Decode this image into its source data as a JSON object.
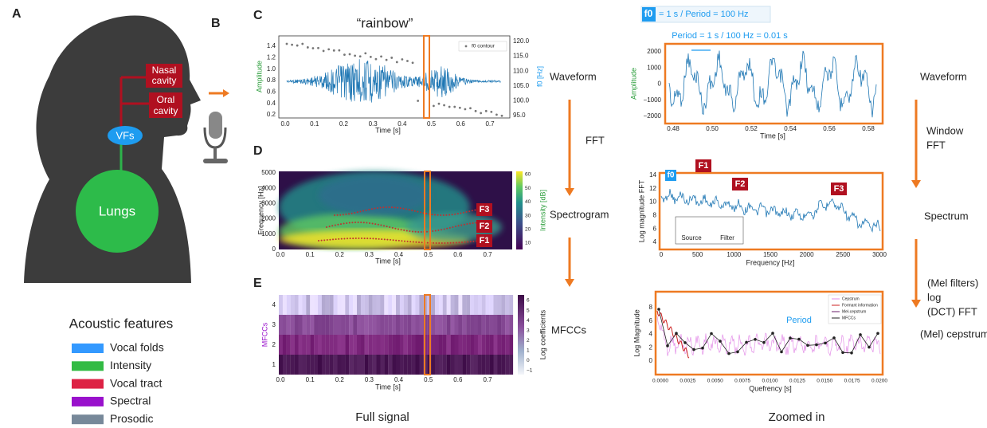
{
  "panel_labels": [
    "A",
    "B",
    "C",
    "D",
    "E"
  ],
  "anatomy": {
    "nasal_cavity": [
      "Nasal",
      "cavity"
    ],
    "oral_cavity": [
      "Oral",
      "cavity"
    ],
    "vfs": "VFs",
    "lungs": "Lungs"
  },
  "legend": {
    "title": "Acoustic features",
    "items": [
      "Vocal folds",
      "Intensity",
      "Vocal tract",
      "Spectral",
      "Prosodic"
    ]
  },
  "waveform_full": {
    "title": "“rainbow”",
    "ylabel": "Amplitude",
    "y2label": "f0 [Hz]",
    "xlabel": "Time [s]",
    "yticks": [
      "0.2",
      "0.4",
      "0.6",
      "0.8",
      "1.0",
      "1.2",
      "1.4"
    ],
    "y2ticks": [
      "95.0",
      "100.0",
      "105.0",
      "110.0",
      "115.0",
      "120.0"
    ],
    "xticks": [
      "0.0",
      "0.1",
      "0.2",
      "0.3",
      "0.4",
      "0.5",
      "0.6",
      "0.7"
    ],
    "legend": "f0 contour"
  },
  "spectrogram": {
    "ylabel": "Frequency [Hz]",
    "xlabel": "Time [s]",
    "yticks": [
      "0",
      "1000",
      "2000",
      "3000",
      "4000",
      "5000"
    ],
    "xticks": [
      "0.0",
      "0.1",
      "0.2",
      "0.3",
      "0.4",
      "0.5",
      "0.6",
      "0.7"
    ],
    "cbar_label": "Intensity [dB]",
    "cbar_ticks": [
      "10",
      "20",
      "30",
      "40",
      "50",
      "60"
    ],
    "formants": [
      "F3",
      "F2",
      "F1"
    ]
  },
  "mfcc": {
    "ylabel": "MFCCs",
    "xlabel": "Time [s]",
    "yticks": [
      "1",
      "2",
      "3",
      "4"
    ],
    "xticks": [
      "0.0",
      "0.1",
      "0.2",
      "0.3",
      "0.4",
      "0.5",
      "0.6",
      "0.7"
    ],
    "cbar_label": "Log coefficients",
    "cbar_ticks": [
      "−1",
      "0",
      "1",
      "2",
      "3",
      "4",
      "5",
      "6"
    ]
  },
  "steps_left": [
    "Waveform",
    "FFT",
    "Spectrogram",
    "MFCCs"
  ],
  "column_titles": [
    "Full signal",
    "Zoomed in"
  ],
  "f0_box": {
    "badge": "f0",
    "text": "= 1 s / Period =  100 Hz"
  },
  "period_formula": "Period = 1 s / 100 Hz = 0.01 s",
  "waveform_zoom": {
    "ylabel": "Amplitude",
    "xlabel": "Time [s]",
    "yticks": [
      "−2000",
      "−1000",
      "0",
      "1000",
      "2000"
    ],
    "xticks": [
      "0.48",
      "0.50",
      "0.52",
      "0.54",
      "0.56",
      "0.58"
    ]
  },
  "spectrum": {
    "ylabel": "Log magnitude FFT",
    "xlabel": "Frequency [Hz]",
    "yticks": [
      "4",
      "6",
      "8",
      "10",
      "12",
      "14"
    ],
    "xticks": [
      "0",
      "500",
      "1000",
      "1500",
      "2000",
      "2500",
      "3000"
    ],
    "f0": "f0",
    "formants": [
      "F1",
      "F2",
      "F3"
    ],
    "inset": [
      "Source",
      "Filter"
    ]
  },
  "cepstrum": {
    "ylabel": "Log Magnitude",
    "xlabel": "Quefrency [s]",
    "yticks": [
      "0",
      "2",
      "4",
      "6",
      "8"
    ],
    "xticks": [
      "0.0000",
      "0.0025",
      "0.0050",
      "0.0075",
      "0.0100",
      "0.0125",
      "0.0150",
      "0.0175",
      "0.0200"
    ],
    "period": "Period",
    "legend": [
      "Cepstrum",
      "Formant information",
      "Mel-cepstrum",
      "MFCCs"
    ]
  },
  "steps_right": [
    "Waveform",
    "Window",
    "FFT",
    "Spectrum",
    "(Mel filters)",
    "log",
    "(DCT) FFT",
    "(Mel) cepstrum"
  ]
}
